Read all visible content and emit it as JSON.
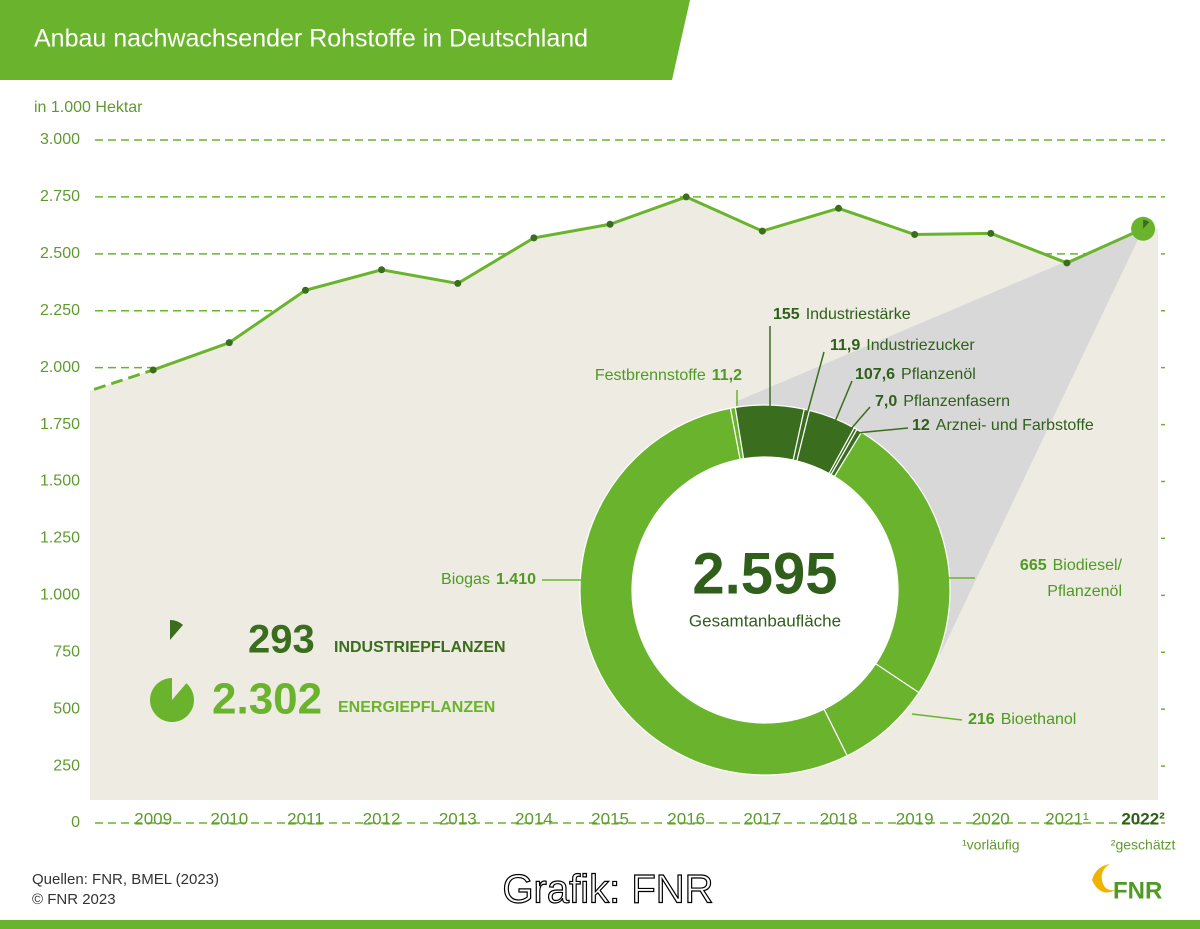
{
  "header": {
    "title": "Anbau nachwachsender Rohstoffe in Deutschland"
  },
  "chart_data": [
    {
      "type": "line",
      "y_label": "in 1.000 Hektar",
      "categories": [
        null,
        "2009",
        "2010",
        "2011",
        "2012",
        "2013",
        "2014",
        "2015",
        "2016",
        "2017",
        "2018",
        "2019",
        "2020",
        "2021¹",
        "2022²"
      ],
      "values": [
        1880,
        1990,
        2110,
        2340,
        2430,
        2370,
        2570,
        2630,
        2750,
        2600,
        2700,
        2585,
        2590,
        2460,
        2610
      ],
      "color": "#6ab42d",
      "marker_color": "#3a6e1e",
      "ylim": [
        0,
        3000
      ],
      "yticks": [
        0,
        250,
        500,
        750,
        {
          "value": 1000,
          "label": "1.000"
        },
        {
          "value": 1250,
          "label": "1.250"
        },
        {
          "value": 1500,
          "label": "1.500"
        },
        {
          "value": 1750,
          "label": "1.750"
        },
        {
          "value": 2000,
          "label": "2.000"
        },
        {
          "value": 2250,
          "label": "2.250"
        },
        {
          "value": 2500,
          "label": "2.500"
        },
        {
          "value": 2750,
          "label": "2.750"
        },
        {
          "value": 3000,
          "label": "3.000"
        }
      ],
      "grid": true,
      "notes": [
        "¹vorläufig",
        "²geschätzt"
      ]
    },
    {
      "type": "donut",
      "total": {
        "value": 2595,
        "label": "2.595"
      },
      "total_caption": "Gesamtanbaufläche",
      "categories": [
        "Festbrennstoffe",
        "Industriestärke",
        "Industriezucker",
        "Pflanzenöl",
        "Pflanzenfasern",
        "Arznei- und Farbstoffe",
        "Biodiesel/ Pflanzenöl",
        "Bioethanol",
        "Biogas"
      ],
      "values": [
        11.2,
        155,
        11.9,
        107.6,
        7.0,
        12,
        665,
        216,
        1410
      ],
      "value_labels": [
        "11,2",
        "155",
        "11,9",
        "107,6",
        "7,0",
        "12",
        "665",
        "216",
        "1.410"
      ],
      "colors": [
        "#6ab42d",
        "#3a6e1e",
        "#3a6e1e",
        "#3a6e1e",
        "#3a6e1e",
        "#3a6e1e",
        "#6ab42d",
        "#6ab42d",
        "#6ab42d"
      ],
      "groups": [
        {
          "value": 293,
          "label": "293",
          "name": "INDUSTRIEPFLANZEN",
          "color": "#3a6e1e"
        },
        {
          "value": 2302,
          "label": "2.302",
          "name": "ENERGIEPFLANZEN",
          "color": "#6ab42d"
        }
      ]
    }
  ],
  "footer": {
    "sources": "Quellen: FNR, BMEL (2023)",
    "copyright": "© FNR 2023",
    "credit": "Grafik: FNR",
    "logo": "FNR"
  }
}
